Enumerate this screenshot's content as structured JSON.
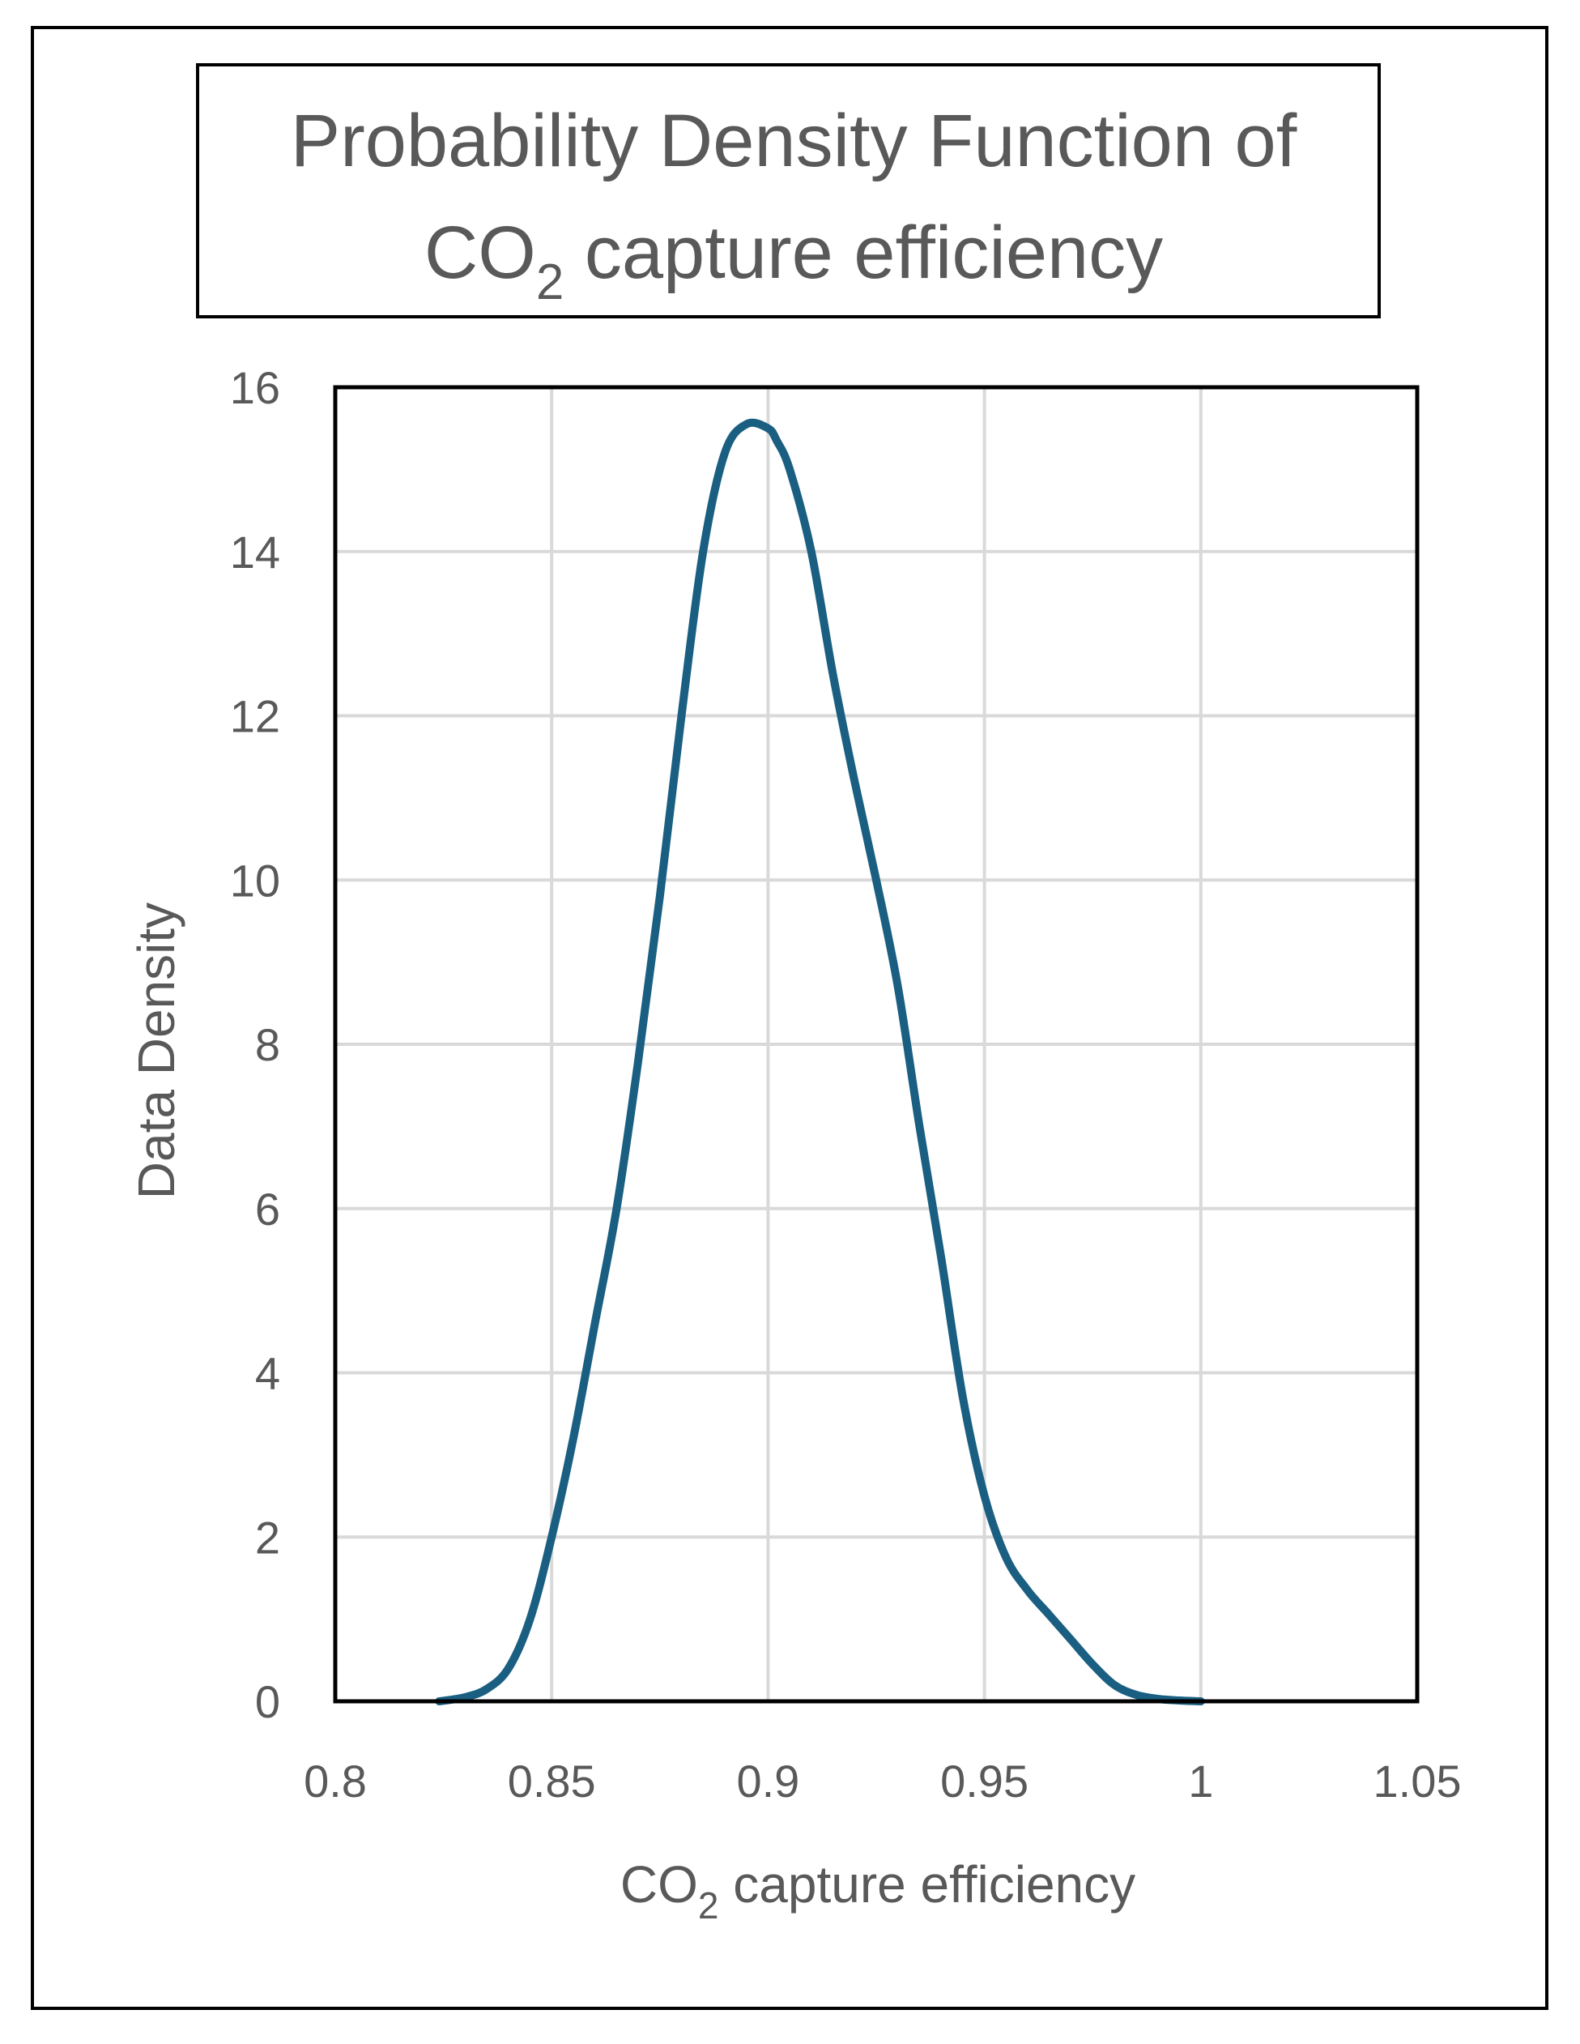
{
  "chart_data": {
    "type": "line",
    "title": {
      "line1": "Probability Density Function of",
      "line2_prefix": "CO",
      "line2_sub": "2",
      "line2_suffix": " capture efficiency"
    },
    "xlabel": {
      "prefix": "CO",
      "sub": "2",
      "suffix": " capture efficiency"
    },
    "ylabel": "Data Density",
    "xlim": [
      0.8,
      1.05
    ],
    "ylim": [
      0,
      16
    ],
    "xticks": [
      0.8,
      0.85,
      0.9,
      0.95,
      1,
      1.05
    ],
    "xtick_labels": [
      "0.8",
      "0.85",
      "0.9",
      "0.95",
      "1",
      "1.05"
    ],
    "yticks": [
      0,
      2,
      4,
      6,
      8,
      10,
      12,
      14,
      16
    ],
    "ytick_labels": [
      "0",
      "2",
      "4",
      "6",
      "8",
      "10",
      "12",
      "14",
      "16"
    ],
    "grid": true,
    "legend": "none",
    "series": [
      {
        "color": "#1a5f82",
        "x": [
          0.824,
          0.83,
          0.835,
          0.84,
          0.845,
          0.85,
          0.855,
          0.86,
          0.865,
          0.87,
          0.875,
          0.88,
          0.885,
          0.89,
          0.895,
          0.9,
          0.902,
          0.905,
          0.91,
          0.915,
          0.92,
          0.925,
          0.93,
          0.935,
          0.94,
          0.945,
          0.95,
          0.955,
          0.96,
          0.965,
          0.97,
          0.975,
          0.98,
          0.985,
          0.99,
          0.995,
          1.0
        ],
        "y": [
          0.0,
          0.05,
          0.15,
          0.4,
          1.0,
          2.0,
          3.2,
          4.6,
          6.0,
          7.8,
          9.8,
          12.0,
          14.0,
          15.2,
          15.55,
          15.5,
          15.35,
          15.0,
          14.0,
          12.5,
          11.2,
          10.0,
          8.7,
          7.0,
          5.4,
          3.7,
          2.5,
          1.75,
          1.35,
          1.05,
          0.75,
          0.45,
          0.2,
          0.08,
          0.03,
          0.01,
          0.0
        ]
      }
    ]
  }
}
